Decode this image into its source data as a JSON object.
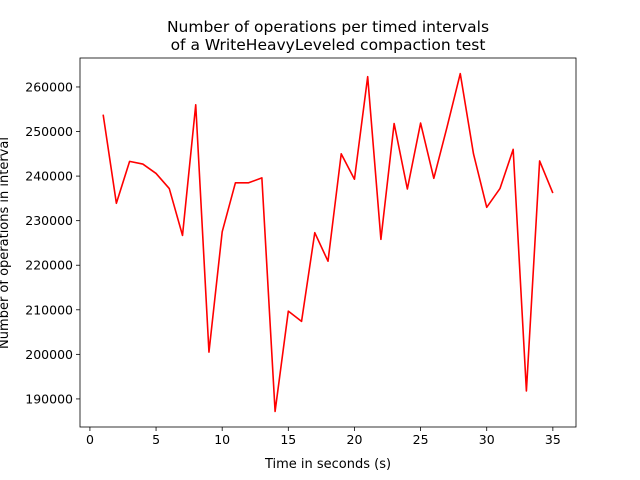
{
  "chart_data": {
    "type": "line",
    "title_line1": "Number of operations per timed intervals",
    "title_line2": "of a WriteHeavyLeveled compaction test",
    "xlabel": "Time in seconds (s)",
    "ylabel": "Number of operations in interval",
    "xlim": [
      -0.75,
      36.75
    ],
    "ylim": [
      183700,
      266500
    ],
    "xticks": [
      0,
      5,
      10,
      15,
      20,
      25,
      30,
      35
    ],
    "yticks": [
      190000,
      200000,
      210000,
      220000,
      230000,
      240000,
      250000,
      260000
    ],
    "grid": false,
    "series": [
      {
        "color": "#ff0000",
        "x": [
          1,
          2,
          3,
          4,
          5,
          6,
          7,
          8,
          9,
          10,
          11,
          12,
          13,
          14,
          15,
          16,
          17,
          18,
          19,
          20,
          21,
          22,
          23,
          24,
          25,
          26,
          27,
          28,
          29,
          30,
          31,
          32,
          33,
          34,
          35
        ],
        "y": [
          253800,
          233900,
          243300,
          242700,
          240600,
          237200,
          226700,
          256000,
          200500,
          227500,
          238500,
          238500,
          239600,
          187200,
          209700,
          207400,
          227300,
          220900,
          245000,
          239300,
          262300,
          225800,
          251800,
          237100,
          251900,
          239500,
          251000,
          263000,
          245000,
          233000,
          237200,
          246000,
          191800,
          243400,
          236200
        ]
      }
    ]
  }
}
